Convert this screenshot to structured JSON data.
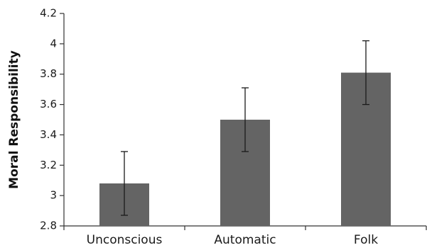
{
  "chart_data": {
    "type": "bar",
    "title": "",
    "xlabel": "",
    "ylabel": "Moral Responsibility",
    "categories": [
      "Unconscious",
      "Automatic",
      "Folk"
    ],
    "values": [
      3.08,
      3.5,
      3.81
    ],
    "error_low": [
      2.87,
      3.29,
      3.6
    ],
    "error_high": [
      3.29,
      3.71,
      4.02
    ],
    "ylim": [
      2.8,
      4.2
    ],
    "yticks": [
      "2.8",
      "3",
      "3.2",
      "3.4",
      "3.6",
      "3.8",
      "4",
      "4.2"
    ],
    "grid": false,
    "legend": "none",
    "bar_color": "#646464"
  }
}
